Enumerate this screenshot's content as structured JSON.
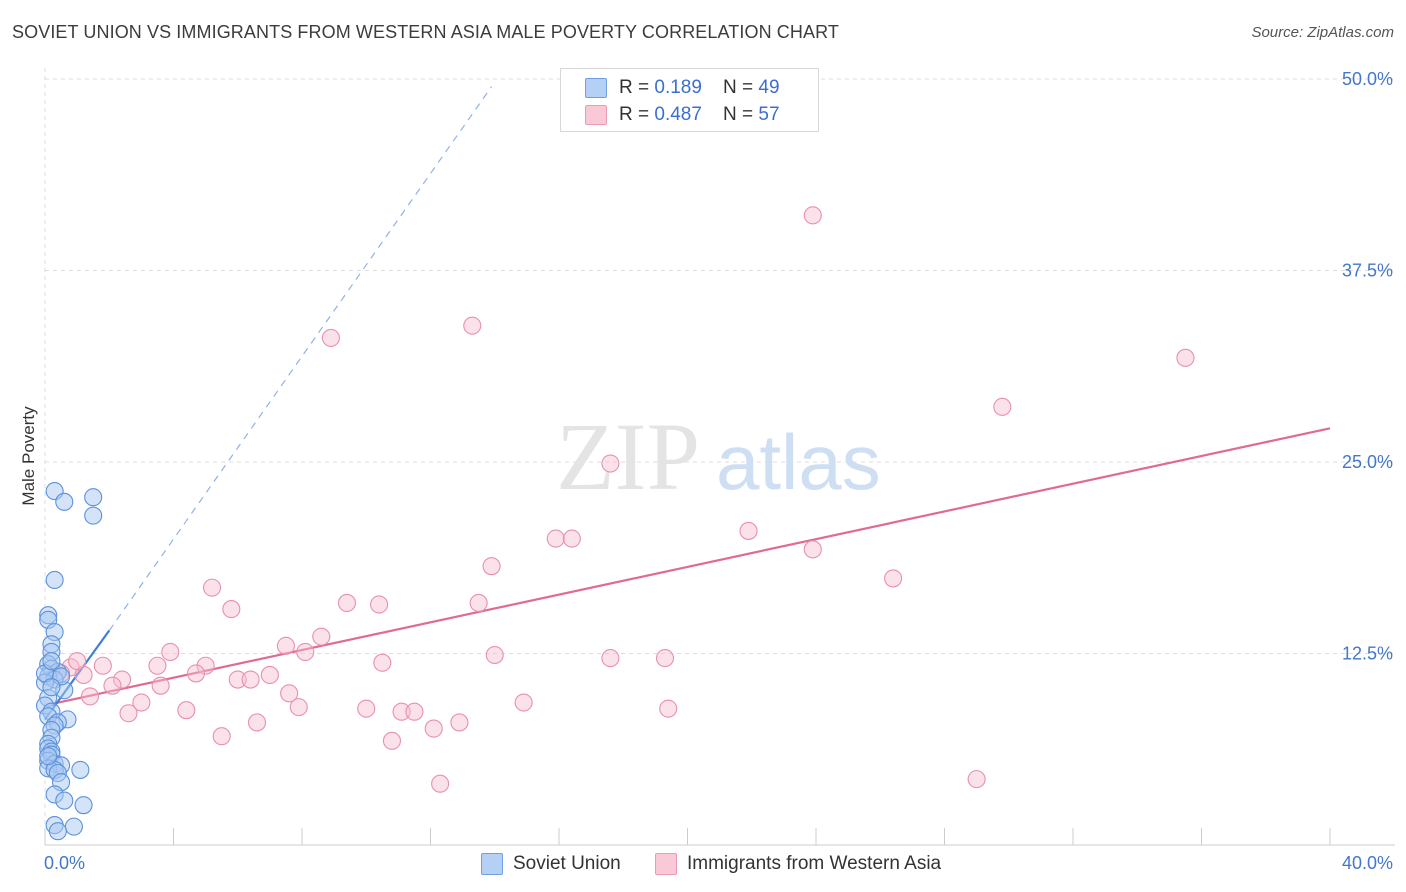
{
  "header": {
    "title": "SOVIET UNION VS IMMIGRANTS FROM WESTERN ASIA MALE POVERTY CORRELATION CHART",
    "source": "Source: ZipAtlas.com"
  },
  "watermark": {
    "part1": "ZIP",
    "part2": "atlas"
  },
  "legend": {
    "series1": {
      "r_label": "R = ",
      "r_value": "0.189",
      "n_label": "N = ",
      "n_value": "49"
    },
    "series2": {
      "r_label": "R = ",
      "r_value": "0.487",
      "n_label": "N = ",
      "n_value": "57"
    }
  },
  "colors": {
    "soviet_fill": "#a9c8f2",
    "soviet_stroke": "#5a92dc",
    "soviet_line": "#3f7fd4",
    "asia_fill": "#f7bfd0",
    "asia_stroke": "#e890ae",
    "asia_line": "#e06a94",
    "grid": "#dcdcdc",
    "tick_text": "#4477c9"
  },
  "chart_data": {
    "type": "scatter",
    "title": "SOVIET UNION VS IMMIGRANTS FROM WESTERN ASIA MALE POVERTY CORRELATION CHART",
    "xlabel": "",
    "ylabel": "Male Poverty",
    "xlim": [
      0,
      40
    ],
    "ylim": [
      0,
      50
    ],
    "x_tick_labels": [
      "0.0%",
      "40.0%"
    ],
    "y_ticks": [
      12.5,
      25.0,
      37.5,
      50.0
    ],
    "y_tick_labels": [
      "12.5%",
      "25.0%",
      "37.5%",
      "50.0%"
    ],
    "grid": true,
    "series": [
      {
        "name": "Soviet Union",
        "r": 0.189,
        "n": 49,
        "trend": {
          "x": [
            0.0,
            2.0
          ],
          "y": [
            8.2,
            14.0
          ]
        },
        "trend_dashed": {
          "x": [
            2.0,
            13.9
          ],
          "y": [
            14.0,
            49.5
          ]
        },
        "points": [
          [
            0.3,
            23.1
          ],
          [
            0.6,
            22.4
          ],
          [
            1.5,
            22.7
          ],
          [
            1.5,
            21.5
          ],
          [
            0.3,
            17.3
          ],
          [
            0.1,
            15.0
          ],
          [
            0.1,
            14.7
          ],
          [
            0.3,
            13.9
          ],
          [
            0.2,
            13.1
          ],
          [
            0.2,
            12.6
          ],
          [
            0.1,
            11.8
          ],
          [
            0.2,
            11.5
          ],
          [
            0.4,
            11.3
          ],
          [
            0.1,
            11.0
          ],
          [
            0.3,
            10.8
          ],
          [
            0.0,
            10.6
          ],
          [
            0.6,
            10.1
          ],
          [
            0.1,
            9.6
          ],
          [
            0.0,
            9.1
          ],
          [
            0.2,
            8.7
          ],
          [
            0.1,
            8.4
          ],
          [
            0.7,
            8.2
          ],
          [
            0.4,
            8.0
          ],
          [
            0.3,
            7.8
          ],
          [
            0.2,
            7.5
          ],
          [
            0.2,
            7.0
          ],
          [
            0.1,
            6.6
          ],
          [
            0.1,
            6.3
          ],
          [
            0.2,
            6.1
          ],
          [
            0.2,
            5.9
          ],
          [
            0.1,
            5.5
          ],
          [
            0.3,
            5.3
          ],
          [
            0.5,
            5.2
          ],
          [
            0.1,
            5.0
          ],
          [
            0.3,
            4.9
          ],
          [
            1.1,
            4.9
          ],
          [
            0.4,
            4.7
          ],
          [
            0.5,
            4.1
          ],
          [
            0.3,
            3.3
          ],
          [
            0.6,
            2.9
          ],
          [
            1.2,
            2.6
          ],
          [
            0.3,
            1.3
          ],
          [
            0.9,
            1.2
          ],
          [
            0.4,
            0.9
          ],
          [
            0.0,
            11.2
          ],
          [
            0.2,
            12.0
          ],
          [
            0.5,
            11.0
          ],
          [
            0.1,
            5.8
          ],
          [
            0.2,
            10.3
          ]
        ]
      },
      {
        "name": "Immigrants from Western Asia",
        "r": 0.487,
        "n": 57,
        "trend": {
          "x": [
            0.2,
            40.0
          ],
          "y": [
            9.2,
            27.2
          ]
        },
        "points": [
          [
            23.9,
            41.1
          ],
          [
            13.3,
            33.9
          ],
          [
            8.9,
            33.1
          ],
          [
            35.5,
            31.8
          ],
          [
            29.8,
            28.6
          ],
          [
            17.6,
            24.9
          ],
          [
            21.9,
            20.5
          ],
          [
            15.9,
            20.0
          ],
          [
            16.4,
            20.0
          ],
          [
            23.9,
            19.3
          ],
          [
            13.9,
            18.2
          ],
          [
            26.4,
            17.4
          ],
          [
            5.2,
            16.8
          ],
          [
            9.4,
            15.8
          ],
          [
            10.4,
            15.7
          ],
          [
            13.5,
            15.8
          ],
          [
            5.8,
            15.4
          ],
          [
            8.6,
            13.6
          ],
          [
            7.5,
            13.0
          ],
          [
            14.0,
            12.4
          ],
          [
            3.9,
            12.6
          ],
          [
            8.1,
            12.6
          ],
          [
            17.6,
            12.2
          ],
          [
            19.3,
            12.2
          ],
          [
            10.5,
            11.9
          ],
          [
            3.5,
            11.7
          ],
          [
            1.8,
            11.7
          ],
          [
            5.0,
            11.7
          ],
          [
            0.8,
            11.6
          ],
          [
            0.5,
            11.2
          ],
          [
            1.2,
            11.1
          ],
          [
            7.0,
            11.1
          ],
          [
            4.7,
            11.2
          ],
          [
            6.0,
            10.8
          ],
          [
            6.4,
            10.8
          ],
          [
            2.4,
            10.8
          ],
          [
            2.1,
            10.4
          ],
          [
            3.6,
            10.4
          ],
          [
            7.6,
            9.9
          ],
          [
            1.4,
            9.7
          ],
          [
            3.0,
            9.3
          ],
          [
            14.9,
            9.3
          ],
          [
            7.9,
            9.0
          ],
          [
            10.0,
            8.9
          ],
          [
            19.4,
            8.9
          ],
          [
            4.4,
            8.8
          ],
          [
            11.1,
            8.7
          ],
          [
            11.5,
            8.7
          ],
          [
            2.6,
            8.6
          ],
          [
            6.6,
            8.0
          ],
          [
            12.9,
            8.0
          ],
          [
            12.1,
            7.6
          ],
          [
            5.5,
            7.1
          ],
          [
            10.8,
            6.8
          ],
          [
            29.0,
            4.3
          ],
          [
            12.3,
            4.0
          ],
          [
            1.0,
            12.0
          ]
        ]
      }
    ]
  },
  "bottom_legend": {
    "series1": "Soviet Union",
    "series2": "Immigrants from Western Asia"
  }
}
